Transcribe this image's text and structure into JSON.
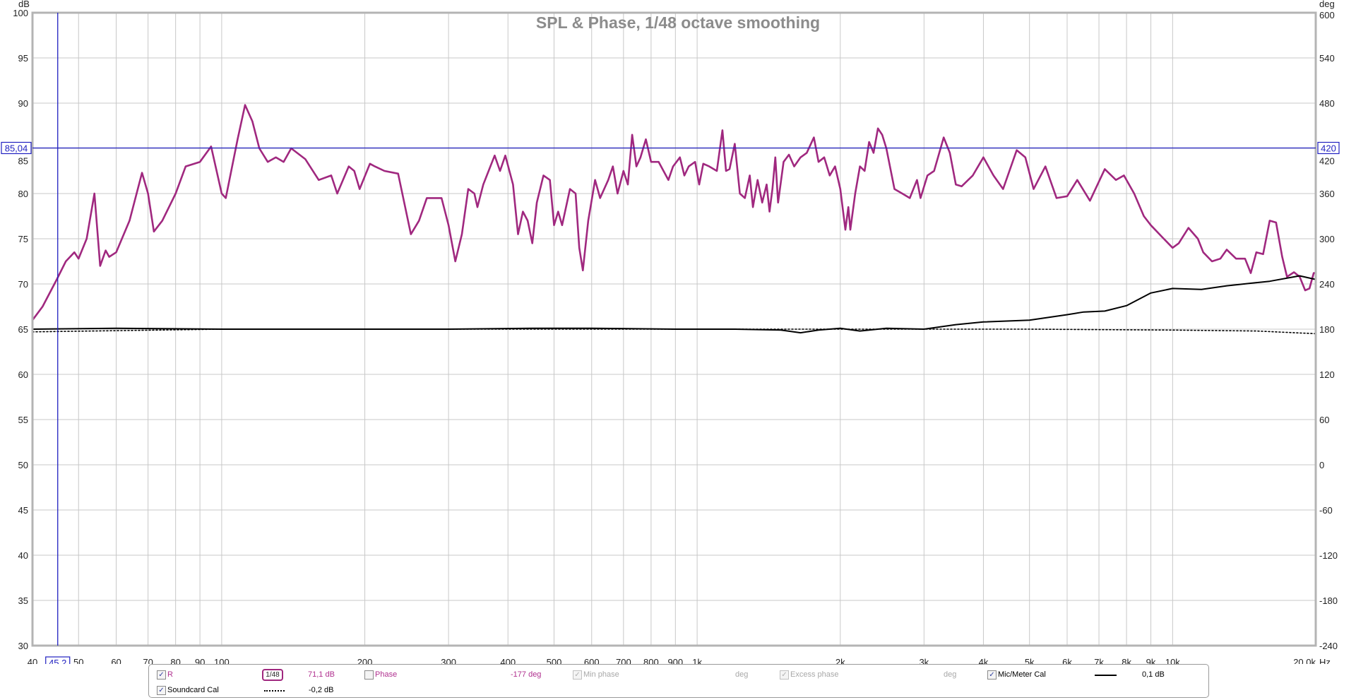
{
  "chart_data": {
    "type": "line",
    "title": "SPL & Phase, 1/48 octave smoothing",
    "xlabel": "Hz",
    "ylabel": "dB",
    "y2label": "deg",
    "x_scale": "log",
    "xlim": [
      40,
      20000
    ],
    "ylim": [
      30,
      100
    ],
    "y2lim": [
      -240,
      600
    ],
    "grid": true,
    "x_ticks": [
      {
        "v": 40,
        "label": "40"
      },
      {
        "v": 50,
        "label": "50"
      },
      {
        "v": 60,
        "label": "60"
      },
      {
        "v": 70,
        "label": "70"
      },
      {
        "v": 80,
        "label": "80"
      },
      {
        "v": 90,
        "label": "90"
      },
      {
        "v": 100,
        "label": "100"
      },
      {
        "v": 200,
        "label": "200"
      },
      {
        "v": 300,
        "label": "300"
      },
      {
        "v": 400,
        "label": "400"
      },
      {
        "v": 500,
        "label": "500"
      },
      {
        "v": 600,
        "label": "600"
      },
      {
        "v": 700,
        "label": "700"
      },
      {
        "v": 800,
        "label": "800"
      },
      {
        "v": 900,
        "label": "900"
      },
      {
        "v": 1000,
        "label": "1k"
      },
      {
        "v": 2000,
        "label": "2k"
      },
      {
        "v": 3000,
        "label": "3k"
      },
      {
        "v": 4000,
        "label": "4k"
      },
      {
        "v": 5000,
        "label": "5k"
      },
      {
        "v": 6000,
        "label": "6k"
      },
      {
        "v": 7000,
        "label": "7k"
      },
      {
        "v": 8000,
        "label": "8k"
      },
      {
        "v": 9000,
        "label": "9k"
      },
      {
        "v": 10000,
        "label": "10k"
      },
      {
        "v": 20000,
        "label": "20,0k"
      }
    ],
    "y_ticks": [
      "100",
      "95",
      "90",
      "85",
      "80",
      "75",
      "70",
      "65",
      "60",
      "55",
      "50",
      "45",
      "40",
      "35",
      "30"
    ],
    "y2_ticks": [
      "600",
      "540",
      "480",
      "420",
      "360",
      "300",
      "240",
      "180",
      "120",
      "60",
      "0",
      "-60",
      "-120",
      "-180",
      "-240"
    ],
    "cursor": {
      "x": 45.2,
      "x_label": "45,2",
      "y": 85.04,
      "y_label": "85,04",
      "y2_label": "420",
      "color": "#2020c0"
    },
    "series": [
      {
        "name": "R",
        "color": "#a0287f",
        "style": "solid",
        "points": [
          [
            40,
            66
          ],
          [
            42,
            67.5
          ],
          [
            45,
            70.5
          ],
          [
            47,
            72.5
          ],
          [
            49,
            73.5
          ],
          [
            50,
            72.8
          ],
          [
            52,
            75
          ],
          [
            54,
            80
          ],
          [
            55.5,
            72
          ],
          [
            57,
            73.7
          ],
          [
            58,
            73
          ],
          [
            60,
            73.5
          ],
          [
            64,
            77
          ],
          [
            68,
            82.3
          ],
          [
            70,
            80
          ],
          [
            72,
            75.8
          ],
          [
            75,
            77
          ],
          [
            80,
            80
          ],
          [
            84,
            83
          ],
          [
            90,
            83.5
          ],
          [
            95,
            85.2
          ],
          [
            100,
            80
          ],
          [
            102,
            79.5
          ],
          [
            108,
            86
          ],
          [
            112,
            89.8
          ],
          [
            116,
            88
          ],
          [
            120,
            85
          ],
          [
            125,
            83.5
          ],
          [
            130,
            84
          ],
          [
            135,
            83.5
          ],
          [
            140,
            85
          ],
          [
            150,
            83.8
          ],
          [
            160,
            81.5
          ],
          [
            170,
            82
          ],
          [
            175,
            80
          ],
          [
            185,
            83
          ],
          [
            190,
            82.5
          ],
          [
            195,
            80.5
          ],
          [
            205,
            83.3
          ],
          [
            210,
            83
          ],
          [
            220,
            82.5
          ],
          [
            235,
            82.2
          ],
          [
            250,
            75.5
          ],
          [
            260,
            77
          ],
          [
            270,
            79.5
          ],
          [
            290,
            79.5
          ],
          [
            300,
            76.5
          ],
          [
            310,
            72.5
          ],
          [
            320,
            75.5
          ],
          [
            330,
            80.5
          ],
          [
            340,
            80
          ],
          [
            345,
            78.5
          ],
          [
            355,
            81
          ],
          [
            375,
            84.2
          ],
          [
            385,
            82.5
          ],
          [
            395,
            84.2
          ],
          [
            410,
            81
          ],
          [
            420,
            75.5
          ],
          [
            430,
            78
          ],
          [
            440,
            77
          ],
          [
            450,
            74.5
          ],
          [
            460,
            79
          ],
          [
            475,
            82
          ],
          [
            490,
            81.5
          ],
          [
            500,
            76.5
          ],
          [
            510,
            78
          ],
          [
            520,
            76.5
          ],
          [
            540,
            80.5
          ],
          [
            555,
            80
          ],
          [
            565,
            74
          ],
          [
            575,
            71.5
          ],
          [
            590,
            77
          ],
          [
            610,
            81.5
          ],
          [
            625,
            79.5
          ],
          [
            650,
            81.5
          ],
          [
            665,
            83
          ],
          [
            680,
            80
          ],
          [
            700,
            82.5
          ],
          [
            715,
            81
          ],
          [
            730,
            86.5
          ],
          [
            745,
            83
          ],
          [
            760,
            84
          ],
          [
            780,
            86
          ],
          [
            800,
            83.5
          ],
          [
            830,
            83.5
          ],
          [
            870,
            81.5
          ],
          [
            890,
            83
          ],
          [
            920,
            84
          ],
          [
            940,
            82
          ],
          [
            960,
            83
          ],
          [
            990,
            83.5
          ],
          [
            1010,
            81
          ],
          [
            1030,
            83.3
          ],
          [
            1060,
            83
          ],
          [
            1100,
            82.5
          ],
          [
            1130,
            87
          ],
          [
            1150,
            82.5
          ],
          [
            1170,
            82.7
          ],
          [
            1200,
            85.5
          ],
          [
            1230,
            80
          ],
          [
            1260,
            79.5
          ],
          [
            1290,
            82
          ],
          [
            1310,
            78.5
          ],
          [
            1340,
            81.5
          ],
          [
            1370,
            79
          ],
          [
            1400,
            81
          ],
          [
            1420,
            78
          ],
          [
            1440,
            80.5
          ],
          [
            1460,
            84
          ],
          [
            1480,
            79
          ],
          [
            1520,
            83.5
          ],
          [
            1560,
            84.3
          ],
          [
            1600,
            83
          ],
          [
            1650,
            84
          ],
          [
            1700,
            84.5
          ],
          [
            1760,
            86.2
          ],
          [
            1800,
            83.5
          ],
          [
            1850,
            84
          ],
          [
            1900,
            82
          ],
          [
            1950,
            83
          ],
          [
            2000,
            80.5
          ],
          [
            2050,
            76
          ],
          [
            2080,
            78.5
          ],
          [
            2100,
            76
          ],
          [
            2150,
            80
          ],
          [
            2200,
            83
          ],
          [
            2250,
            82.5
          ],
          [
            2300,
            85.7
          ],
          [
            2350,
            84.5
          ],
          [
            2400,
            87.2
          ],
          [
            2450,
            86.5
          ],
          [
            2500,
            85
          ],
          [
            2600,
            80.5
          ],
          [
            2700,
            80
          ],
          [
            2800,
            79.5
          ],
          [
            2900,
            81.5
          ],
          [
            2950,
            79.5
          ],
          [
            3050,
            82
          ],
          [
            3150,
            82.5
          ],
          [
            3300,
            86.2
          ],
          [
            3400,
            84.5
          ],
          [
            3500,
            81
          ],
          [
            3600,
            80.8
          ],
          [
            3800,
            82
          ],
          [
            4000,
            84
          ],
          [
            4200,
            82
          ],
          [
            4400,
            80.5
          ],
          [
            4700,
            84.8
          ],
          [
            4900,
            84
          ],
          [
            5100,
            80.5
          ],
          [
            5400,
            83
          ],
          [
            5700,
            79.5
          ],
          [
            6000,
            79.7
          ],
          [
            6300,
            81.5
          ],
          [
            6700,
            79.2
          ],
          [
            7200,
            82.7
          ],
          [
            7600,
            81.5
          ],
          [
            7900,
            82
          ],
          [
            8300,
            80
          ],
          [
            8700,
            77.5
          ],
          [
            9000,
            76.5
          ],
          [
            9500,
            75.2
          ],
          [
            10000,
            74
          ],
          [
            10300,
            74.5
          ],
          [
            10800,
            76.2
          ],
          [
            11300,
            75
          ],
          [
            11600,
            73.5
          ],
          [
            12100,
            72.5
          ],
          [
            12600,
            72.8
          ],
          [
            13000,
            73.8
          ],
          [
            13600,
            72.8
          ],
          [
            14200,
            72.8
          ],
          [
            14600,
            71.2
          ],
          [
            15000,
            73.5
          ],
          [
            15500,
            73.3
          ],
          [
            16000,
            77
          ],
          [
            16500,
            76.8
          ],
          [
            17000,
            73
          ],
          [
            17400,
            70.8
          ],
          [
            18000,
            71.3
          ],
          [
            18500,
            70.8
          ],
          [
            19000,
            69.3
          ],
          [
            19400,
            69.5
          ],
          [
            19800,
            71.2
          ],
          [
            20000,
            71.2
          ]
        ]
      },
      {
        "name": "Mic/Meter Cal",
        "color": "#000000",
        "style": "solid",
        "points": [
          [
            40,
            65
          ],
          [
            60,
            65.1
          ],
          [
            100,
            65
          ],
          [
            300,
            65
          ],
          [
            450,
            65.1
          ],
          [
            600,
            65.1
          ],
          [
            900,
            65
          ],
          [
            1200,
            65
          ],
          [
            1500,
            64.9
          ],
          [
            1650,
            64.6
          ],
          [
            1800,
            64.9
          ],
          [
            2000,
            65.1
          ],
          [
            2200,
            64.8
          ],
          [
            2500,
            65.1
          ],
          [
            3000,
            65
          ],
          [
            3500,
            65.5
          ],
          [
            4000,
            65.8
          ],
          [
            5000,
            66
          ],
          [
            6000,
            66.6
          ],
          [
            6500,
            66.9
          ],
          [
            7200,
            67
          ],
          [
            8000,
            67.6
          ],
          [
            9000,
            69
          ],
          [
            10000,
            69.5
          ],
          [
            11500,
            69.4
          ],
          [
            13000,
            69.8
          ],
          [
            16000,
            70.3
          ],
          [
            18500,
            70.9
          ],
          [
            20000,
            70.5
          ]
        ]
      },
      {
        "name": "Soundcard Cal",
        "color": "#000000",
        "style": "dotted",
        "points": [
          [
            40,
            64.7
          ],
          [
            100,
            65
          ],
          [
            1000,
            65
          ],
          [
            5000,
            65
          ],
          [
            10000,
            64.9
          ],
          [
            15000,
            64.8
          ],
          [
            20000,
            64.5
          ]
        ]
      }
    ]
  },
  "legend": {
    "r": {
      "label": "R",
      "smoothing": "1/48",
      "value": "71,1 dB"
    },
    "phase": {
      "label": "Phase",
      "value": "-177 deg"
    },
    "min_phase": {
      "label": "Min phase",
      "unit": "deg"
    },
    "excess_phase": {
      "label": "Excess phase",
      "unit": "deg"
    },
    "mic_cal": {
      "label": "Mic/Meter Cal",
      "value": "0,1 dB"
    },
    "soundcard_cal": {
      "label": "Soundcard Cal",
      "value": "-0,2 dB"
    },
    "check": "✓"
  }
}
